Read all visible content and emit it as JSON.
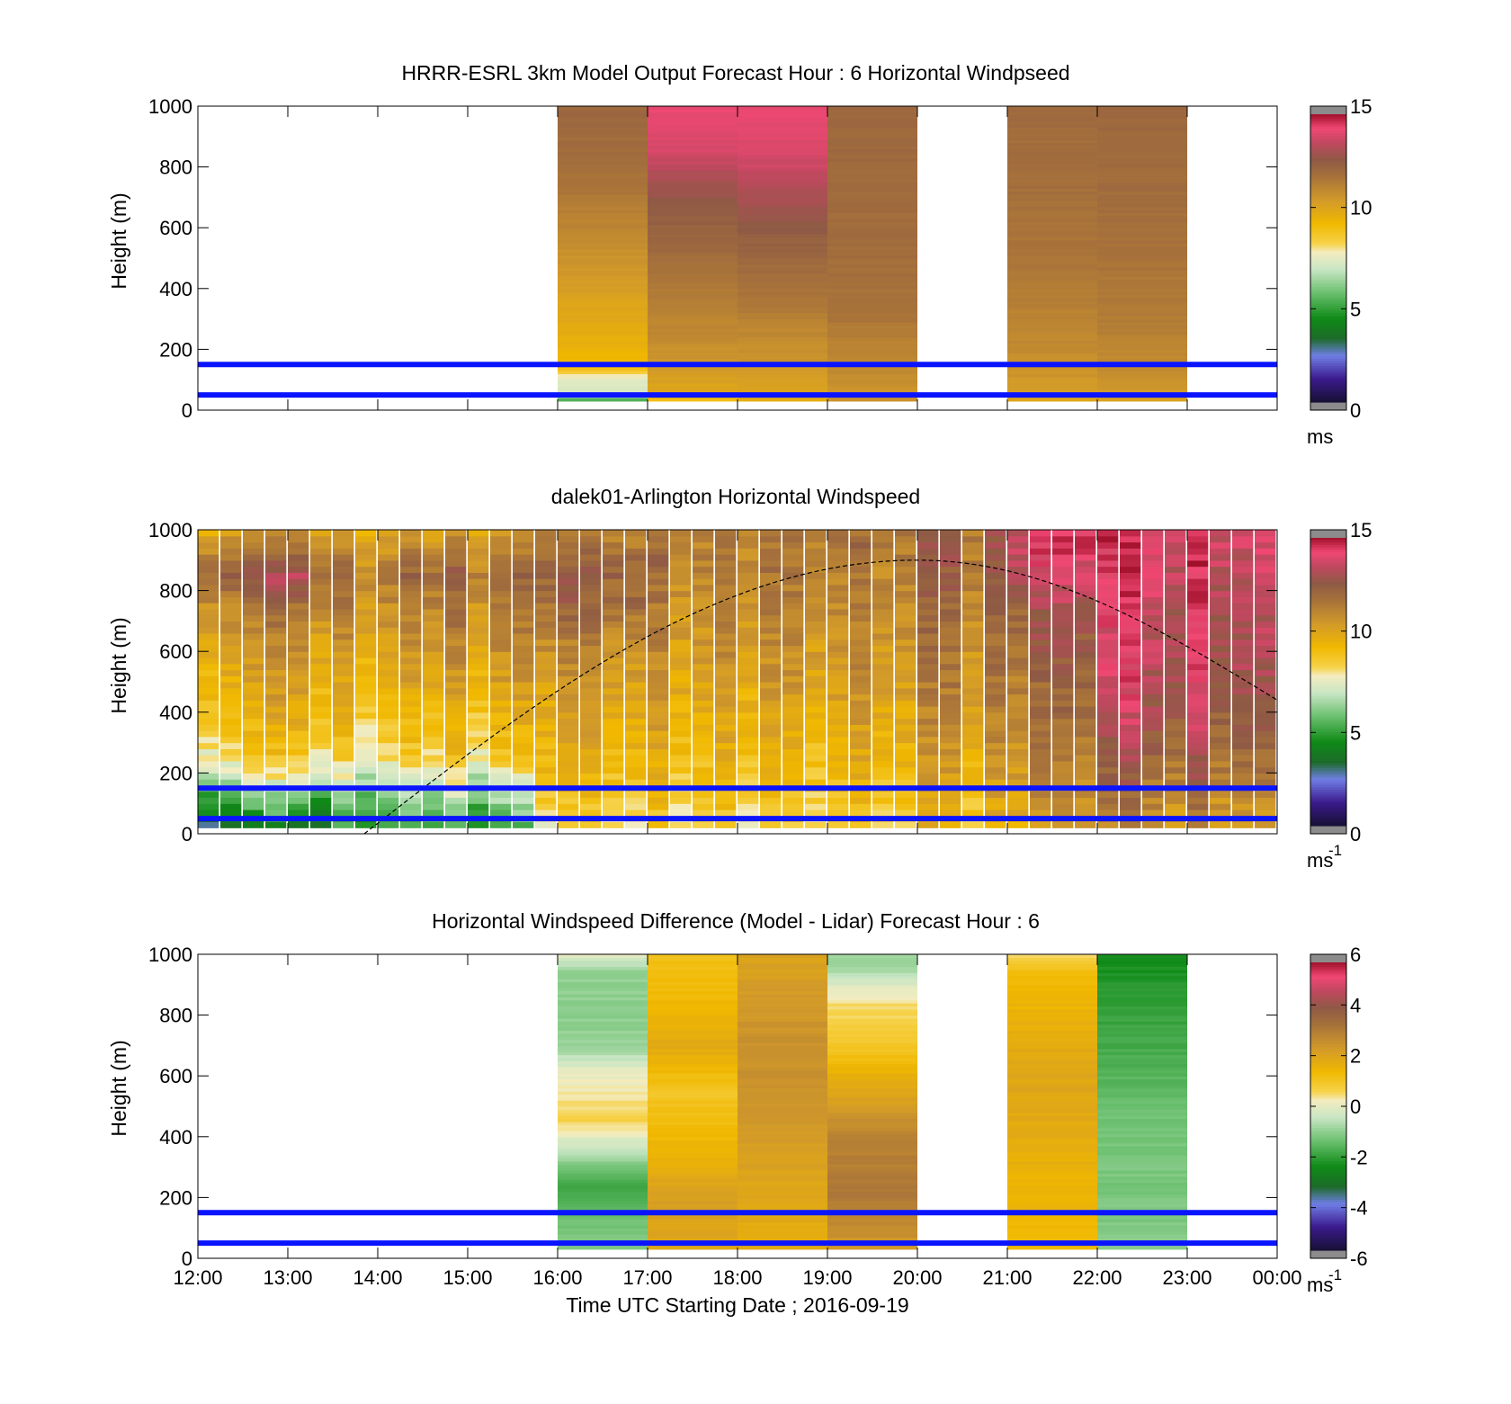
{
  "chart_data": [
    {
      "type": "heatmap",
      "title": "HRRR-ESRL 3km Model Output   Forecast Hour : 6 Horizontal Windpseed",
      "ylabel": "Height (m)",
      "xlabel": "",
      "y_ticks": [
        "0",
        "200",
        "400",
        "600",
        "800",
        "1000"
      ],
      "ylim": [
        0,
        1000
      ],
      "xlim_hours": [
        12,
        24
      ],
      "colorbar": {
        "ticks": [
          "0",
          "5",
          "10",
          "15"
        ],
        "range": [
          0,
          15
        ],
        "unit": "ms",
        "unit_sup": ""
      },
      "reference_heights_m": [
        50,
        150
      ],
      "columns": [
        {
          "start_hour": 16,
          "end_hour": 17,
          "profile": [
            [
              30,
              4.5
            ],
            [
              40,
              6.0
            ],
            [
              60,
              7.0
            ],
            [
              80,
              7.3
            ],
            [
              110,
              7.5
            ],
            [
              140,
              9.2
            ],
            [
              200,
              9.5
            ],
            [
              260,
              9.8
            ],
            [
              330,
              10.0
            ],
            [
              420,
              10.4
            ],
            [
              520,
              10.8
            ],
            [
              620,
              11.2
            ],
            [
              720,
              11.6
            ],
            [
              820,
              11.9
            ],
            [
              1000,
              12.1
            ]
          ]
        },
        {
          "start_hour": 17,
          "end_hour": 18,
          "profile": [
            [
              30,
              8.8
            ],
            [
              60,
              10.0
            ],
            [
              150,
              10.6
            ],
            [
              250,
              11.0
            ],
            [
              350,
              11.3
            ],
            [
              450,
              11.7
            ],
            [
              550,
              12.1
            ],
            [
              650,
              12.5
            ],
            [
              750,
              13.0
            ],
            [
              850,
              13.8
            ],
            [
              1000,
              14.2
            ]
          ]
        },
        {
          "start_hour": 18,
          "end_hour": 19,
          "profile": [
            [
              30,
              9.8
            ],
            [
              60,
              10.1
            ],
            [
              150,
              10.6
            ],
            [
              250,
              11.0
            ],
            [
              350,
              11.5
            ],
            [
              450,
              11.9
            ],
            [
              550,
              12.3
            ],
            [
              650,
              12.8
            ],
            [
              750,
              13.4
            ],
            [
              850,
              13.9
            ],
            [
              1000,
              14.2
            ]
          ]
        },
        {
          "start_hour": 19,
          "end_hour": 20,
          "profile": [
            [
              30,
              10.6
            ],
            [
              150,
              11.0
            ],
            [
              300,
              11.6
            ],
            [
              500,
              11.9
            ],
            [
              700,
              12.0
            ],
            [
              1000,
              12.1
            ]
          ]
        },
        {
          "start_hour": 21,
          "end_hour": 22,
          "profile": [
            [
              30,
              10.1
            ],
            [
              60,
              10.4
            ],
            [
              150,
              10.8
            ],
            [
              300,
              11.2
            ],
            [
              500,
              11.6
            ],
            [
              700,
              11.8
            ],
            [
              1000,
              12.0
            ]
          ]
        },
        {
          "start_hour": 22,
          "end_hour": 23,
          "profile": [
            [
              30,
              10.2
            ],
            [
              60,
              10.6
            ],
            [
              150,
              11.0
            ],
            [
              300,
              11.4
            ],
            [
              500,
              11.7
            ],
            [
              700,
              11.9
            ],
            [
              1000,
              12.1
            ]
          ]
        }
      ]
    },
    {
      "type": "heatmap",
      "title": "dalek01-Arlington  Horizontal Windspeed",
      "ylabel": "Height (m)",
      "xlabel": "",
      "y_ticks": [
        "0",
        "200",
        "400",
        "600",
        "800",
        "1000"
      ],
      "ylim": [
        0,
        1000
      ],
      "xlim_hours": [
        12,
        24
      ],
      "colorbar": {
        "ticks": [
          "0",
          "5",
          "10",
          "15"
        ],
        "range": [
          0,
          15
        ],
        "unit": "ms",
        "unit_sup": "-1"
      },
      "reference_heights_m": [
        50,
        150
      ],
      "column_step_minutes": 15,
      "column_width_minutes": 14,
      "profiles_by_hour": [
        {
          "from_hour": 12,
          "to_hour": 13.5,
          "profile": [
            [
              20,
              3.5
            ],
            [
              60,
              4.5
            ],
            [
              120,
              5.5
            ],
            [
              200,
              7.5
            ],
            [
              260,
              8.5
            ],
            [
              400,
              9.6
            ],
            [
              600,
              10.4
            ],
            [
              750,
              11.5
            ],
            [
              850,
              12.8
            ],
            [
              1000,
              10.5
            ]
          ]
        },
        {
          "from_hour": 13.5,
          "to_hour": 15.7,
          "profile": [
            [
              20,
              5.0
            ],
            [
              60,
              5.2
            ],
            [
              120,
              6.2
            ],
            [
              200,
              7.5
            ],
            [
              260,
              8.4
            ],
            [
              400,
              9.3
            ],
            [
              600,
              10.4
            ],
            [
              750,
              11.2
            ],
            [
              850,
              11.8
            ],
            [
              1000,
              10.2
            ]
          ]
        },
        {
          "from_hour": 15.7,
          "to_hour": 17,
          "profile": [
            [
              30,
              8.0
            ],
            [
              100,
              8.6
            ],
            [
              200,
              9.3
            ],
            [
              400,
              10.0
            ],
            [
              600,
              10.8
            ],
            [
              750,
              12.0
            ],
            [
              850,
              12.4
            ],
            [
              1000,
              11.2
            ]
          ]
        },
        {
          "from_hour": 17,
          "to_hour": 19,
          "profile": [
            [
              30,
              8.6
            ],
            [
              150,
              9.2
            ],
            [
              300,
              9.8
            ],
            [
              500,
              10.6
            ],
            [
              700,
              11.2
            ],
            [
              900,
              11.8
            ],
            [
              1000,
              11.6
            ]
          ]
        },
        {
          "from_hour": 19,
          "to_hour": 21,
          "profile": [
            [
              30,
              9.0
            ],
            [
              150,
              9.6
            ],
            [
              300,
              10.2
            ],
            [
              500,
              10.9
            ],
            [
              700,
              11.4
            ],
            [
              900,
              11.9
            ],
            [
              1000,
              12.0
            ]
          ]
        },
        {
          "from_hour": 21,
          "to_hour": 22,
          "profile": [
            [
              30,
              9.8
            ],
            [
              150,
              10.4
            ],
            [
              300,
              11.0
            ],
            [
              500,
              11.5
            ],
            [
              700,
              12.2
            ],
            [
              900,
              13.5
            ],
            [
              1000,
              14.0
            ]
          ]
        },
        {
          "from_hour": 22,
          "to_hour": 24,
          "profile": [
            [
              30,
              11.0
            ],
            [
              150,
              11.8
            ],
            [
              300,
              12.8
            ],
            [
              500,
              13.6
            ],
            [
              700,
              13.9
            ],
            [
              900,
              14.2
            ],
            [
              1000,
              14.4
            ]
          ]
        }
      ],
      "boundary_layer_curve": {
        "start_hour": 13.85,
        "peak_hour": 20.0,
        "peak_height_m": 900,
        "end_hour": 24,
        "end_height_m": 440
      }
    },
    {
      "type": "heatmap",
      "title": "Horizontal Windspeed Difference (Model - Lidar) Forecast Hour : 6",
      "ylabel": "Height (m)",
      "xlabel": "Time UTC  Starting Date ; 2016-09-19",
      "y_ticks": [
        "0",
        "200",
        "400",
        "600",
        "800",
        "1000"
      ],
      "x_ticks": [
        "12:00",
        "13:00",
        "14:00",
        "15:00",
        "16:00",
        "17:00",
        "18:00",
        "19:00",
        "20:00",
        "21:00",
        "22:00",
        "23:00",
        "00:00"
      ],
      "ylim": [
        0,
        1000
      ],
      "xlim_hours": [
        12,
        24
      ],
      "colorbar": {
        "ticks": [
          "-6",
          "-4",
          "-2",
          "0",
          "2",
          "4",
          "6"
        ],
        "range": [
          -6,
          6
        ],
        "unit": "ms",
        "unit_sup": "-1"
      },
      "reference_heights_m": [
        50,
        150
      ],
      "columns": [
        {
          "start_hour": 16,
          "end_hour": 17,
          "profile": [
            [
              30,
              -1.2
            ],
            [
              150,
              -1.5
            ],
            [
              250,
              -2.0
            ],
            [
              350,
              -0.6
            ],
            [
              450,
              0.6
            ],
            [
              550,
              0.3
            ],
            [
              620,
              0.0
            ],
            [
              700,
              -1.0
            ],
            [
              800,
              -1.1
            ],
            [
              950,
              -1.0
            ],
            [
              1000,
              0.0
            ]
          ]
        },
        {
          "start_hour": 17,
          "end_hour": 18,
          "profile": [
            [
              30,
              2.0
            ],
            [
              200,
              2.2
            ],
            [
              400,
              1.4
            ],
            [
              550,
              1.0
            ],
            [
              700,
              1.9
            ],
            [
              850,
              1.4
            ],
            [
              1000,
              1.2
            ]
          ]
        },
        {
          "start_hour": 18,
          "end_hour": 19,
          "profile": [
            [
              30,
              1.8
            ],
            [
              200,
              2.0
            ],
            [
              400,
              2.3
            ],
            [
              550,
              2.6
            ],
            [
              700,
              2.6
            ],
            [
              850,
              2.4
            ],
            [
              1000,
              2.1
            ]
          ]
        },
        {
          "start_hour": 19,
          "end_hour": 20,
          "profile": [
            [
              30,
              2.4
            ],
            [
              200,
              3.2
            ],
            [
              400,
              3.0
            ],
            [
              550,
              2.0
            ],
            [
              700,
              1.0
            ],
            [
              850,
              0.4
            ],
            [
              950,
              -0.8
            ],
            [
              1000,
              -1.0
            ]
          ]
        },
        {
          "start_hour": 21,
          "end_hour": 22,
          "profile": [
            [
              30,
              1.4
            ],
            [
              200,
              1.5
            ],
            [
              400,
              1.8
            ],
            [
              550,
              2.0
            ],
            [
              700,
              1.9
            ],
            [
              850,
              1.5
            ],
            [
              950,
              1.2
            ],
            [
              1000,
              0.5
            ]
          ]
        },
        {
          "start_hour": 22,
          "end_hour": 23,
          "profile": [
            [
              30,
              -1.0
            ],
            [
              90,
              -1.2
            ],
            [
              200,
              -1.3
            ],
            [
              400,
              -1.3
            ],
            [
              550,
              -1.6
            ],
            [
              700,
              -1.9
            ],
            [
              850,
              -2.1
            ],
            [
              950,
              -2.4
            ],
            [
              1000,
              -2.5
            ]
          ]
        }
      ]
    }
  ]
}
